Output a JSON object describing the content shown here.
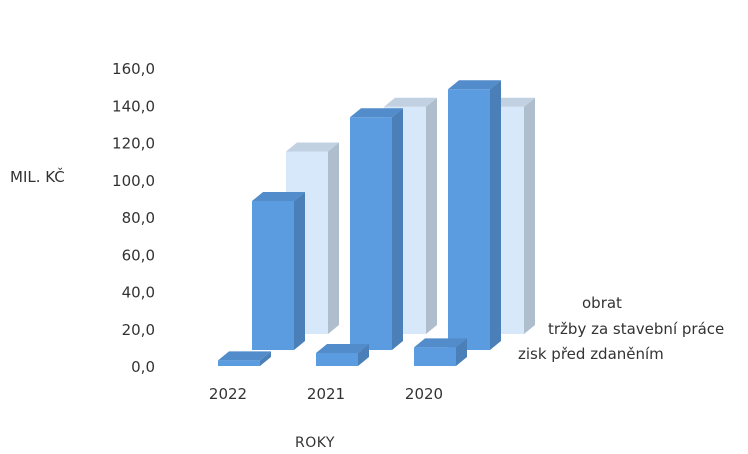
{
  "chart_data": {
    "type": "bar",
    "subtype": "3d-clustered-depth",
    "categories": [
      "2022",
      "2021",
      "2020"
    ],
    "series": [
      {
        "name": "obrat",
        "values": [
          98,
          122,
          122
        ],
        "color": "#d6e8fa"
      },
      {
        "name": "tržby za stavební práce",
        "values": [
          80,
          125,
          140
        ],
        "color": "#5b9be0"
      },
      {
        "name": "zisk před zdaněním",
        "values": [
          3,
          7,
          10
        ],
        "color": "#5b9be0"
      }
    ],
    "ylabel": "MIL. KČ",
    "xlabel": "ROKY",
    "yticks": [
      "0,0",
      "20,0",
      "40,0",
      "60,0",
      "80,0",
      "100,0",
      "120,0",
      "140,0",
      "160,0"
    ],
    "ylim": [
      0,
      160
    ],
    "grid": false,
    "legend": "right, stacked by depth"
  }
}
